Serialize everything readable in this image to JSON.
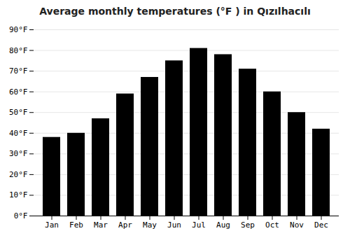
{
  "chart_data": {
    "type": "bar",
    "title": "Average monthly temperatures (°F ) in Qızılhacılı",
    "categories": [
      "Jan",
      "Feb",
      "Mar",
      "Apr",
      "May",
      "Jun",
      "Jul",
      "Aug",
      "Sep",
      "Oct",
      "Nov",
      "Dec"
    ],
    "values": [
      38,
      40,
      47,
      59,
      67,
      75,
      81,
      78,
      71,
      60,
      50,
      42
    ],
    "ylim": [
      0,
      90
    ],
    "yticks": [
      {
        "value": 0,
        "label": "0°F"
      },
      {
        "value": 10,
        "label": "10°F"
      },
      {
        "value": 20,
        "label": "20°F"
      },
      {
        "value": 30,
        "label": "30°F"
      },
      {
        "value": 40,
        "label": "40°F"
      },
      {
        "value": 50,
        "label": "50°F"
      },
      {
        "value": 60,
        "label": "60°F"
      },
      {
        "value": 70,
        "label": "70°F"
      },
      {
        "value": 80,
        "label": "80°F"
      },
      {
        "value": 90,
        "label": "90°F"
      }
    ],
    "grid": true
  }
}
